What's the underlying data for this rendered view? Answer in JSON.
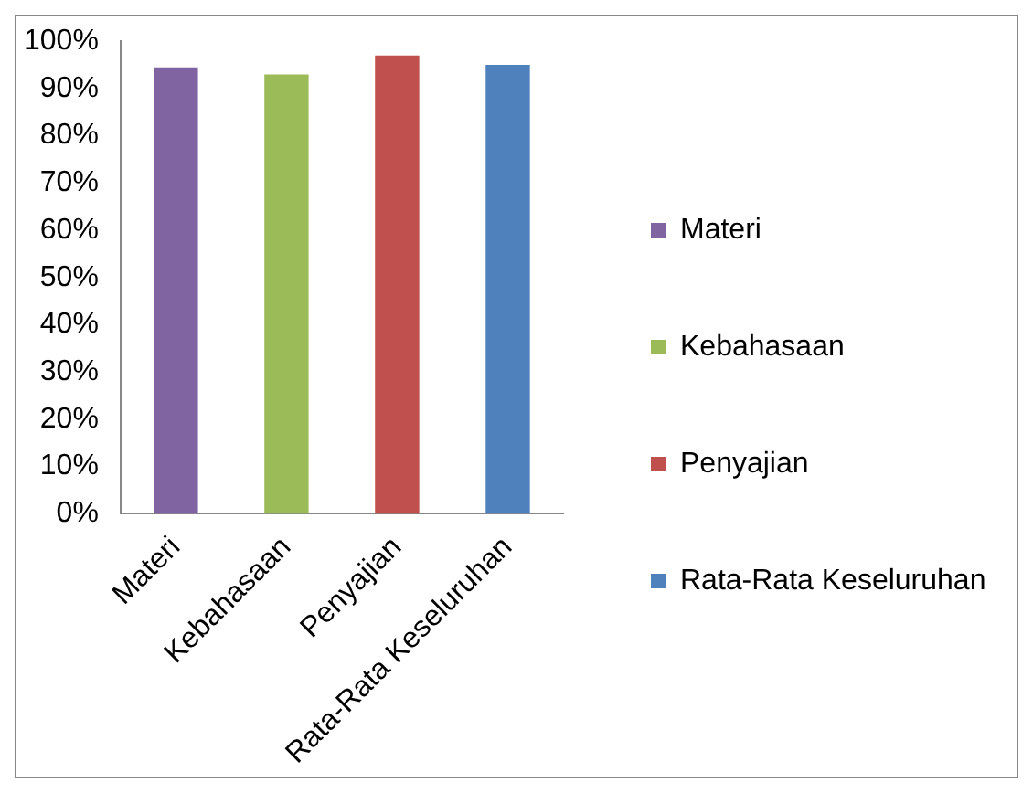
{
  "chart_data": {
    "type": "bar",
    "categories": [
      "Materi",
      "Kebahasaan",
      "Penyajian",
      "Rata-Rata Keseluruhan"
    ],
    "series": [
      {
        "name": "Materi",
        "color": "#8064a2",
        "values": [
          94.5,
          null,
          null,
          null
        ]
      },
      {
        "name": "Kebahasaan",
        "color": "#9bbb59",
        "values": [
          null,
          93,
          null,
          null
        ]
      },
      {
        "name": "Penyajian",
        "color": "#c0504d",
        "values": [
          null,
          null,
          97,
          null
        ]
      },
      {
        "name": "Rata-Rata Keseluruhan",
        "color": "#4f81bd",
        "values": [
          null,
          null,
          null,
          95
        ]
      }
    ],
    "ylim": [
      0,
      100
    ],
    "yticks": [
      {
        "value": 0,
        "label": "0%"
      },
      {
        "value": 10,
        "label": "10%"
      },
      {
        "value": 20,
        "label": "20%"
      },
      {
        "value": 30,
        "label": "30%"
      },
      {
        "value": 40,
        "label": "40%"
      },
      {
        "value": 50,
        "label": "50%"
      },
      {
        "value": 60,
        "label": "60%"
      },
      {
        "value": 70,
        "label": "70%"
      },
      {
        "value": 80,
        "label": "80%"
      },
      {
        "value": 90,
        "label": "90%"
      },
      {
        "value": 100,
        "label": "100%"
      }
    ],
    "grid": false,
    "legend": "right"
  }
}
